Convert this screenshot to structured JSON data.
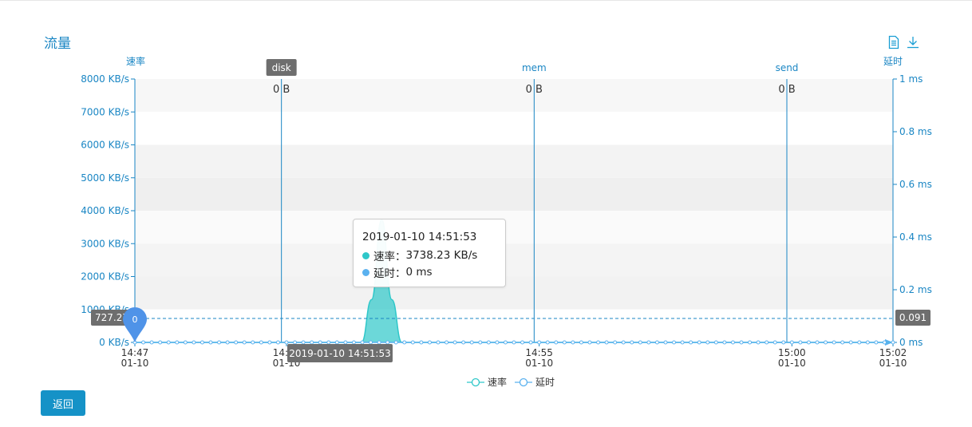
{
  "page": {
    "title": "流量",
    "back_label": "返回",
    "toolbar": {
      "data_view_icon": "document-icon",
      "save_image_icon": "download-icon"
    }
  },
  "tooltip": {
    "time": "2019-01-10 14:51:53",
    "rows": [
      {
        "label": "速率",
        "value": "3738.23 KB/s",
        "color": "#2ec7c9"
      },
      {
        "label": "延时",
        "value": "0 ms",
        "color": "#5ab1ef"
      }
    ]
  },
  "chart_data": {
    "type": "area",
    "left_axis": {
      "name": "速率",
      "min": 0,
      "max": 8000,
      "unit": "KB/s",
      "ticks": [
        "0 KB/s",
        "1000 KB/s",
        "2000 KB/s",
        "3000 KB/s",
        "4000 KB/s",
        "5000 KB/s",
        "6000 KB/s",
        "7000 KB/s",
        "8000 KB/s"
      ]
    },
    "right_axis": {
      "name": "延时",
      "min": 0,
      "max": 1,
      "unit": "ms",
      "ticks": [
        "0 ms",
        "0.2 ms",
        "0.4 ms",
        "0.6 ms",
        "0.8 ms",
        "1 ms"
      ]
    },
    "x_axis": {
      "start": "2019-01-10 14:47:00",
      "end": "2019-01-10 15:02:00",
      "ticks": [
        {
          "time": "2019-01-10 14:47:00",
          "line1": "14:47",
          "line2": "01-10"
        },
        {
          "time": "2019-01-10 14:50:00",
          "line1": "14:50",
          "line2": "01-10"
        },
        {
          "time": "2019-01-10 14:55:00",
          "line1": "14:55",
          "line2": "01-10"
        },
        {
          "time": "2019-01-10 15:00:00",
          "line1": "15:00",
          "line2": "01-10"
        },
        {
          "time": "2019-01-10 15:02:00",
          "line1": "15:02",
          "line2": "01-10"
        }
      ],
      "pointer_label": "2019-01-10 14:51:53"
    },
    "series": [
      {
        "name": "速率",
        "color": "#2ec7c9",
        "points": [
          {
            "t": "2019-01-10 14:47:00",
            "v": 0
          },
          {
            "t": "2019-01-10 14:51:29",
            "v": 0
          },
          {
            "t": "2019-01-10 14:51:41",
            "v": 1300
          },
          {
            "t": "2019-01-10 14:51:53",
            "v": 3738.23
          },
          {
            "t": "2019-01-10 14:52:05",
            "v": 1300
          },
          {
            "t": "2019-01-10 14:52:17",
            "v": 0
          },
          {
            "t": "2019-01-10 15:02:00",
            "v": 0
          }
        ]
      },
      {
        "name": "延时",
        "color": "#5ab1ef",
        "points": [
          {
            "t": "2019-01-10 14:47:00",
            "v": 0
          },
          {
            "t": "2019-01-10 15:02:00",
            "v": 0
          }
        ]
      }
    ],
    "mark_points": [
      {
        "label": "0",
        "t": "2019-01-10 14:47:00",
        "v": 0
      }
    ],
    "mark_line": {
      "value_left": "727.27",
      "value_right": "0.091",
      "v": 727.27
    },
    "events": [
      {
        "label": "disk",
        "value": "0 B",
        "t": "2019-01-10 14:49:54",
        "boxed": true
      },
      {
        "label": "mem",
        "value": "0 B",
        "t": "2019-01-10 14:54:54",
        "boxed": false
      },
      {
        "label": "send",
        "value": "0 B",
        "t": "2019-01-10 14:59:54",
        "boxed": false
      }
    ],
    "legend": [
      "速率",
      "延时"
    ],
    "grid_bands": true
  }
}
